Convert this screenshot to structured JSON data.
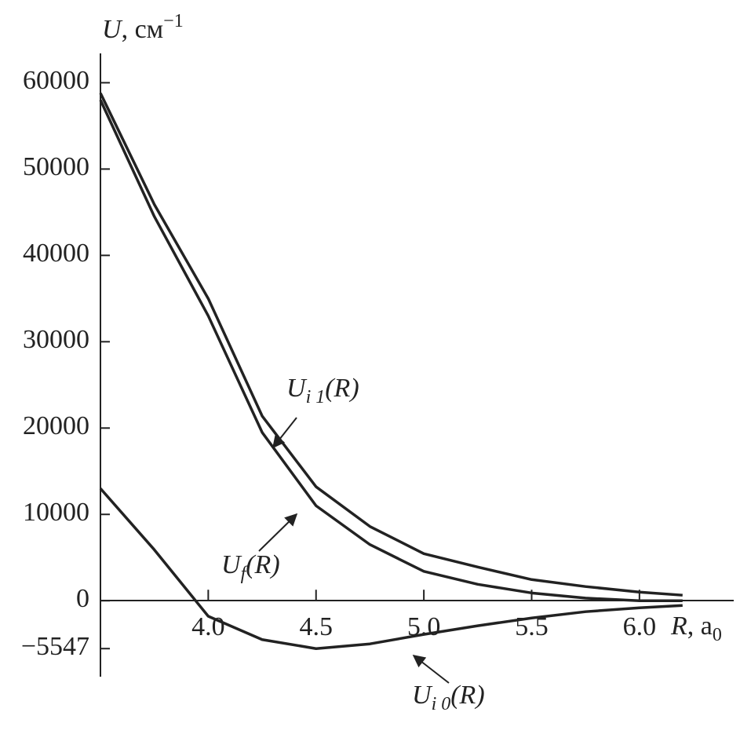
{
  "chart_data": {
    "type": "line",
    "y_label": {
      "symbol": "U",
      "unit": ", см",
      "exponent": "−1"
    },
    "x_label": {
      "symbol": "R",
      "unit": ", a",
      "subscript": "0"
    },
    "xlim": [
      3.5,
      6.43
    ],
    "ylim": [
      -8800,
      63400
    ],
    "xticks": [
      {
        "value": 4,
        "label": "4.0"
      },
      {
        "value": 4.5,
        "label": "4.5"
      },
      {
        "value": 5,
        "label": "5.0"
      },
      {
        "value": 5.5,
        "label": "5.5"
      },
      {
        "value": 6,
        "label": "6.0"
      }
    ],
    "yticks": [
      {
        "value": -5547,
        "label": "−5547"
      },
      0,
      10000,
      20000,
      30000,
      40000,
      50000,
      60000
    ],
    "x": [
      3.5,
      3.75,
      4.0,
      4.25,
      4.5,
      4.75,
      5.0,
      5.25,
      5.5,
      5.75,
      6.0,
      6.2
    ],
    "series": [
      {
        "name": {
          "symbol": "U",
          "sub": "i 1",
          "arg": "(R)"
        },
        "color": "#222222",
        "values": [
          58800,
          45900,
          35000,
          21400,
          13200,
          8600,
          5450,
          3900,
          2450,
          1640,
          1000,
          640
        ]
      },
      {
        "name": {
          "symbol": "U",
          "sub": "f",
          "arg": "(R)"
        },
        "color": "#222222",
        "values": [
          58000,
          44500,
          33000,
          19500,
          11000,
          6500,
          3400,
          1900,
          900,
          300,
          0,
          0
        ]
      },
      {
        "name": {
          "symbol": "U",
          "sub": "i 0",
          "arg": "(R)"
        },
        "color": "#222222",
        "values": [
          13000,
          5900,
          -1800,
          -4500,
          -5547,
          -5000,
          -3900,
          -2900,
          -2000,
          -1270,
          -820,
          -550
        ]
      }
    ]
  }
}
